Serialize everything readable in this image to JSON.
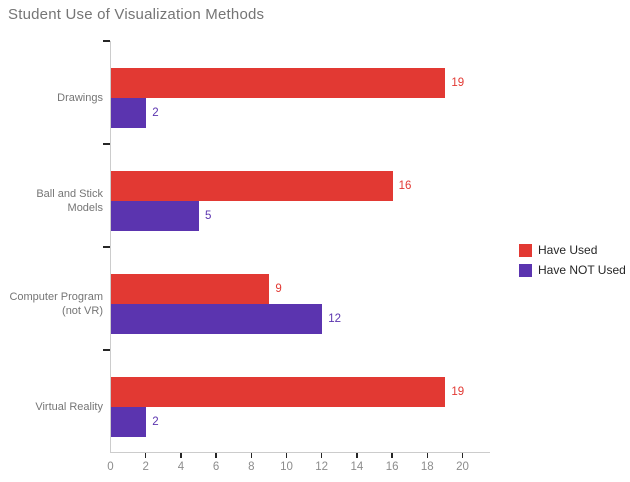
{
  "chart_data": {
    "type": "bar",
    "orientation": "horizontal",
    "title": "Student Use of Visualization Methods",
    "categories": [
      "Drawings",
      "Ball and Stick Models",
      "Computer Program (not VR)",
      "Virtual Reality"
    ],
    "category_label_lines": [
      [
        "Drawings"
      ],
      [
        "Ball and Stick",
        "Models"
      ],
      [
        "Computer Program",
        "(not VR)"
      ],
      [
        "Virtual Reality"
      ]
    ],
    "series": [
      {
        "name": "Have Used",
        "color": "#e23933",
        "values": [
          19,
          16,
          9,
          19
        ]
      },
      {
        "name": "Have NOT Used",
        "color": "#5b34af",
        "values": [
          2,
          5,
          12,
          2
        ]
      }
    ],
    "xlim": [
      0,
      20
    ],
    "xticks": [
      0,
      2,
      4,
      6,
      8,
      10,
      12,
      14,
      16,
      18,
      20
    ],
    "value_labels_shown": true,
    "legend_position": "right",
    "grid": false
  },
  "colors": {
    "background": "#ffffff",
    "title_text": "#757575",
    "category_text": "#757575",
    "tick_text": "#8c8c8c",
    "axis_line": "#cccccc",
    "tick_mark": "#262626",
    "legend_text": "#262626"
  }
}
